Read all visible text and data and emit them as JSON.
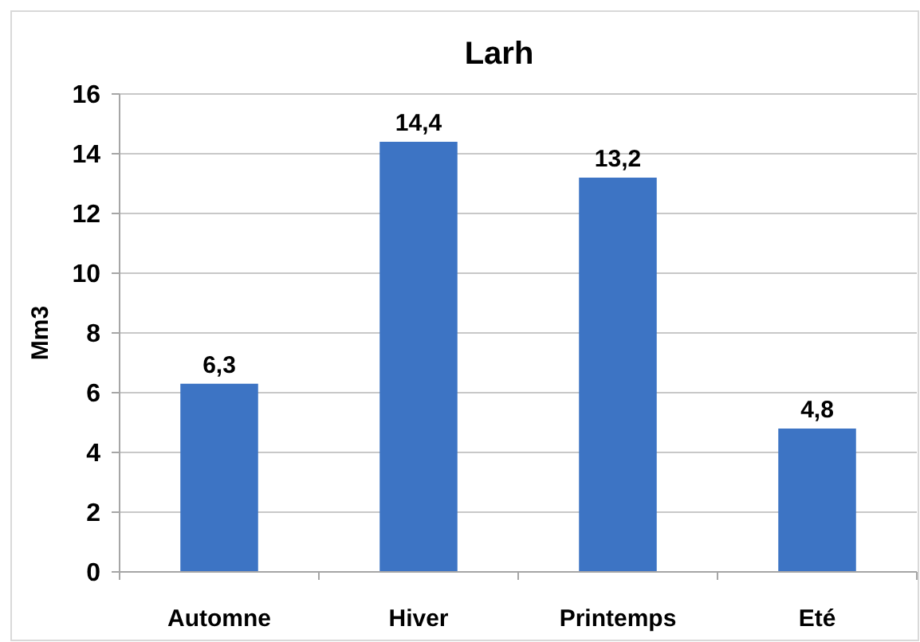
{
  "chart_data": {
    "type": "bar",
    "title": "Larh",
    "ylabel": "Mm3",
    "categories": [
      "Automne",
      "Hiver",
      "Printemps",
      "Eté"
    ],
    "values": [
      6.3,
      14.4,
      13.2,
      4.8
    ],
    "value_labels": [
      "6,3",
      "14,4",
      "13,2",
      "4,8"
    ],
    "color": "#3d74c4",
    "ylim": [
      0,
      16
    ],
    "yticks": [
      0,
      2,
      4,
      6,
      8,
      10,
      12,
      14,
      16
    ],
    "grid": "y"
  }
}
